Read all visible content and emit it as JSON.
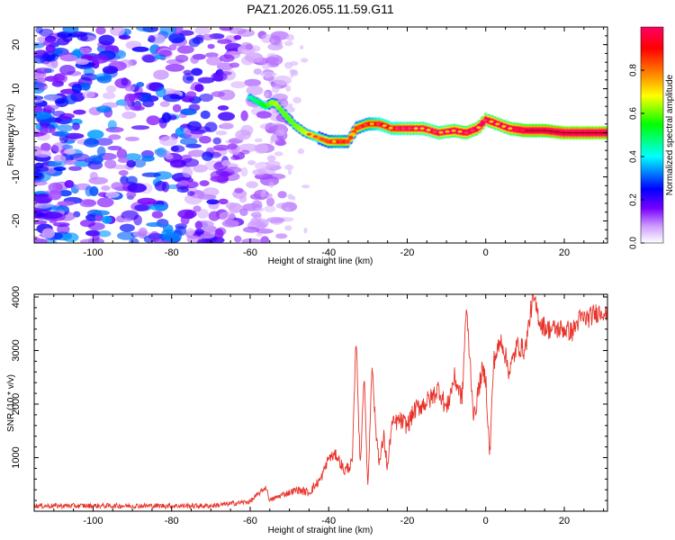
{
  "chart_data": [
    {
      "type": "heatmap",
      "title": "PAZ1.2026.055.11.59.G11",
      "xlabel": "Height of straight line (km)",
      "ylabel": "Frequency (Hz)",
      "xlim": [
        -115,
        31
      ],
      "ylim": [
        -25,
        24
      ],
      "x_ticks": [
        -100,
        -80,
        -60,
        -40,
        -20,
        0,
        20
      ],
      "y_ticks": [
        -20,
        -10,
        0,
        10,
        20
      ],
      "colorbar": {
        "label": "Normalized spectral amplitude",
        "range": [
          0,
          1
        ],
        "ticks": [
          0.0,
          0.2,
          0.4,
          0.6,
          0.8
        ],
        "colors": [
          "#ffffff",
          "#cc99ff",
          "#7700ff",
          "#0000ff",
          "#00ffff",
          "#00ff00",
          "#ffff00",
          "#ff8800",
          "#ff0000",
          "#ff0066"
        ]
      },
      "ridge": {
        "x": [
          -60,
          -56,
          -54,
          -52,
          -49,
          -46,
          -43,
          -40,
          -37,
          -35,
          -33,
          -30,
          -27,
          -24,
          -20,
          -16,
          -12,
          -8,
          -5,
          -2,
          0,
          3,
          6,
          10,
          15,
          20,
          25,
          31
        ],
        "y": [
          8,
          6,
          7,
          5,
          2,
          0,
          -1,
          -2,
          -2,
          -2,
          1,
          2,
          2,
          1,
          1,
          1,
          0,
          0.5,
          0,
          1,
          3,
          2,
          1,
          0.5,
          0.5,
          0,
          0,
          0
        ],
        "amplitude": [
          0.3,
          0.4,
          0.5,
          0.45,
          0.45,
          0.5,
          0.6,
          0.7,
          0.75,
          0.7,
          0.7,
          0.75,
          0.8,
          0.8,
          0.85,
          0.85,
          0.85,
          0.9,
          0.9,
          0.9,
          0.9,
          0.9,
          0.9,
          0.95,
          0.95,
          1.0,
          1.0,
          1.0
        ]
      },
      "noise_region_x": [
        -115,
        -55
      ],
      "noise_amplitude_range": [
        0.05,
        0.35
      ]
    },
    {
      "type": "line",
      "xlabel": "Height of straight line (km)",
      "ylabel": "SNR (10 * v/v)",
      "xlim": [
        -115,
        31
      ],
      "ylim": [
        0,
        4050
      ],
      "x_ticks": [
        -100,
        -80,
        -60,
        -40,
        -20,
        0,
        20
      ],
      "y_ticks": [
        1000,
        2000,
        3000,
        4000
      ],
      "color": "#e8332a",
      "series": [
        {
          "name": "SNR",
          "x": [
            -115,
            -100,
            -85,
            -70,
            -60,
            -56,
            -55,
            -52,
            -48,
            -45,
            -42,
            -40,
            -38,
            -36,
            -34,
            -33,
            -32,
            -31,
            -30,
            -29,
            -28,
            -27,
            -26,
            -25,
            -24,
            -22,
            -20,
            -18,
            -16,
            -14,
            -12,
            -10,
            -8,
            -6,
            -5,
            -4,
            -3,
            -2,
            -1,
            0,
            1,
            2,
            4,
            6,
            8,
            10,
            12,
            14,
            16,
            18,
            20,
            22,
            24,
            26,
            28,
            30,
            31
          ],
          "y": [
            100,
            100,
            100,
            100,
            180,
            450,
            200,
            300,
            400,
            350,
            600,
            1000,
            1050,
            750,
            900,
            3300,
            800,
            2550,
            400,
            2800,
            1500,
            900,
            1400,
            800,
            1600,
            1700,
            1600,
            1900,
            2000,
            2100,
            2300,
            1900,
            2500,
            2100,
            3800,
            2800,
            1700,
            2200,
            2600,
            2500,
            1000,
            2800,
            3200,
            2600,
            3100,
            3000,
            4000,
            3500,
            3400,
            3400,
            3400,
            3350,
            3600,
            3600,
            3700,
            3750,
            3600
          ]
        }
      ],
      "noise_amplitude": 60
    }
  ]
}
